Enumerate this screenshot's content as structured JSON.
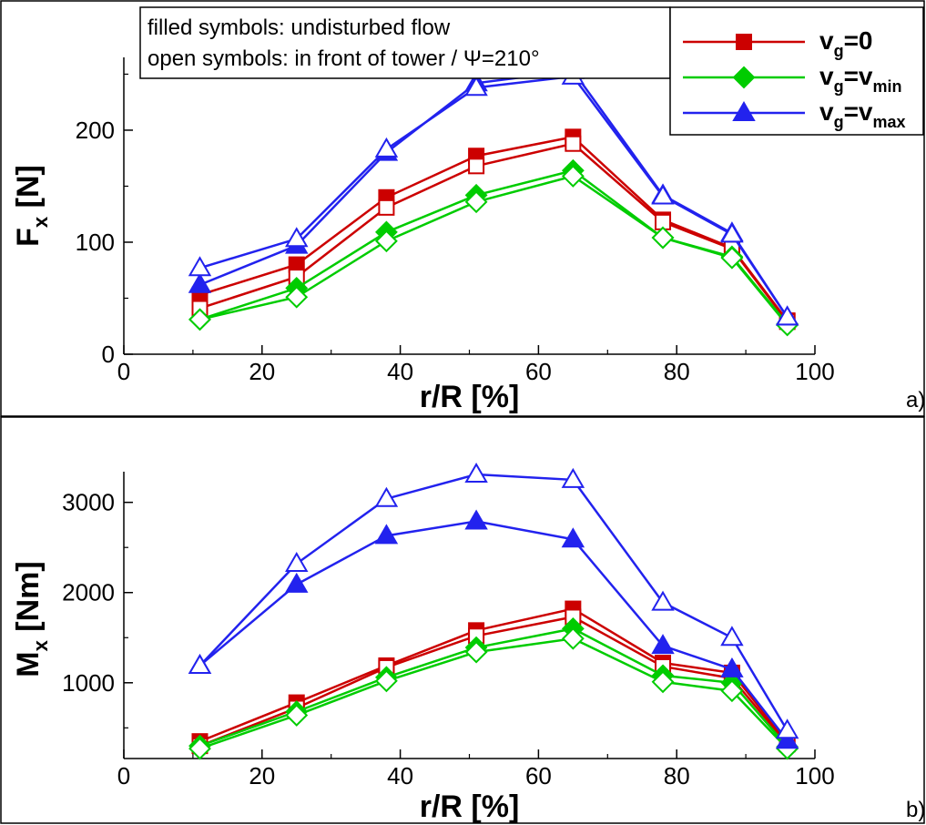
{
  "note": {
    "line1": "filled symbols: undisturbed flow",
    "line2": "open symbols: in front of tower / Ψ=210°"
  },
  "legend": [
    {
      "label": "v",
      "sub": "g",
      "rest": "=0",
      "restsub": ""
    },
    {
      "label": "v",
      "sub": "g",
      "rest": "=v",
      "restsub": "min"
    },
    {
      "label": "v",
      "sub": "g",
      "rest": "=v",
      "restsub": "max"
    }
  ],
  "colors": {
    "red": "#cc0000",
    "green": "#00cc00",
    "blue": "#2222ee"
  },
  "chart_data": [
    {
      "type": "line",
      "panel_tag": "a)",
      "xlabel": "r/R [%]",
      "ylabel_main": "F",
      "ylabel_sub": "x",
      "ylabel_rest": " [N]",
      "xlim": [
        0,
        100
      ],
      "ylim": [
        0,
        265
      ],
      "xticks": [
        0,
        20,
        40,
        60,
        80,
        100
      ],
      "yticks": [
        0,
        100,
        200
      ],
      "x": [
        11,
        25,
        38,
        51,
        65,
        78,
        88,
        96
      ],
      "series": [
        {
          "name": "vg=0 filled",
          "color": "red",
          "marker": "square",
          "filled": true,
          "values": [
            53,
            80,
            140,
            177,
            194,
            120,
            95,
            30
          ]
        },
        {
          "name": "vg=0 open",
          "color": "red",
          "marker": "square",
          "filled": false,
          "values": [
            41,
            69,
            131,
            168,
            188,
            118,
            94,
            29
          ]
        },
        {
          "name": "vg=vmin filled",
          "color": "green",
          "marker": "diamond",
          "filled": true,
          "values": [
            31,
            59,
            109,
            142,
            164,
            104,
            87,
            27
          ]
        },
        {
          "name": "vg=vmin open",
          "color": "green",
          "marker": "diamond",
          "filled": false,
          "values": [
            31,
            51,
            101,
            136,
            159,
            104,
            86,
            26
          ]
        },
        {
          "name": "vg=vmax filled",
          "color": "blue",
          "marker": "triangle",
          "filled": true,
          "values": [
            62,
            97,
            180,
            242,
            253,
            142,
            108,
            33
          ]
        },
        {
          "name": "vg=vmax open",
          "color": "blue",
          "marker": "triangle",
          "filled": false,
          "values": [
            77,
            103,
            183,
            238,
            248,
            141,
            107,
            33
          ]
        }
      ]
    },
    {
      "type": "line",
      "panel_tag": "b)",
      "xlabel": "r/R [%]",
      "ylabel_main": "M",
      "ylabel_sub": "x",
      "ylabel_rest": " [Nm]",
      "xlim": [
        0,
        100
      ],
      "ylim": [
        160,
        3340
      ],
      "xticks": [
        0,
        20,
        40,
        60,
        80,
        100
      ],
      "yticks": [
        1000,
        2000,
        3000
      ],
      "x": [
        11,
        25,
        38,
        51,
        65,
        78,
        88,
        96
      ],
      "series": [
        {
          "name": "vg=0 filled",
          "color": "red",
          "marker": "square",
          "filled": true,
          "values": [
            350,
            780,
            1190,
            1580,
            1820,
            1220,
            1110,
            340
          ]
        },
        {
          "name": "vg=0 open",
          "color": "red",
          "marker": "square",
          "filled": false,
          "values": [
            300,
            720,
            1170,
            1520,
            1730,
            1180,
            1050,
            320
          ]
        },
        {
          "name": "vg=vmin filled",
          "color": "green",
          "marker": "diamond",
          "filled": true,
          "values": [
            300,
            680,
            1060,
            1390,
            1600,
            1080,
            1000,
            290
          ]
        },
        {
          "name": "vg=vmin open",
          "color": "green",
          "marker": "diamond",
          "filled": false,
          "values": [
            270,
            640,
            1020,
            1340,
            1490,
            1010,
            910,
            270
          ]
        },
        {
          "name": "vg=vmax filled",
          "color": "blue",
          "marker": "triangle",
          "filled": true,
          "values": [
            1190,
            2090,
            2630,
            2790,
            2590,
            1410,
            1150,
            360
          ]
        },
        {
          "name": "vg=vmax open",
          "color": "blue",
          "marker": "triangle",
          "filled": false,
          "values": [
            1190,
            2320,
            3040,
            3310,
            3250,
            1890,
            1500,
            470
          ]
        }
      ]
    }
  ]
}
